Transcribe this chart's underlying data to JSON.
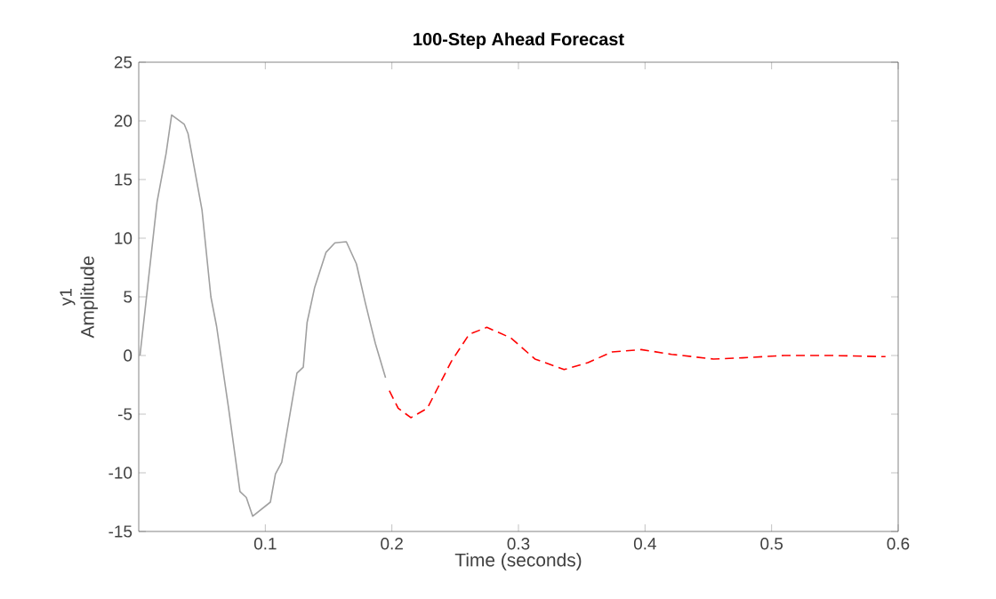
{
  "chart_data": {
    "type": "line",
    "title": "100-Step Ahead Forecast",
    "xlabel": "Time (seconds)",
    "ylabel": "Amplitude",
    "annotations": [
      "y1"
    ],
    "xlim": [
      0,
      0.6
    ],
    "xticks": [
      0.1,
      0.2,
      0.3,
      0.4,
      0.5,
      0.6
    ],
    "ylim": [
      -15,
      25
    ],
    "yticks": [
      -15,
      -10,
      -5,
      0,
      5,
      10,
      15,
      20,
      25
    ],
    "grid": false,
    "series": [
      {
        "color": "#a0a0a0",
        "line_style": "solid",
        "x": [
          0.001,
          0.0145,
          0.0216,
          0.026,
          0.036,
          0.039,
          0.05,
          0.057,
          0.0615,
          0.071,
          0.08,
          0.085,
          0.09,
          0.104,
          0.108,
          0.113,
          0.125,
          0.13,
          0.133,
          0.139,
          0.148,
          0.155,
          0.164,
          0.172,
          0.179,
          0.184,
          0.187,
          0.195
        ],
        "values": [
          0,
          13.1,
          17.2,
          20.5,
          19.7,
          18.9,
          12.4,
          5.0,
          2.5,
          -4.5,
          -11.6,
          -12.1,
          -13.7,
          -12.5,
          -10.1,
          -9.1,
          -1.5,
          -1.0,
          2.8,
          5.8,
          8.8,
          9.6,
          9.7,
          7.8,
          4.5,
          2.3,
          1.0,
          -1.9
        ]
      },
      {
        "color": "#ff0000",
        "line_style": "dashed",
        "x": [
          0.198,
          0.205,
          0.215,
          0.228,
          0.247,
          0.261,
          0.275,
          0.294,
          0.313,
          0.336,
          0.355,
          0.374,
          0.397,
          0.421,
          0.454,
          0.477,
          0.51,
          0.547,
          0.59
        ],
        "values": [
          -3.0,
          -4.5,
          -5.3,
          -4.5,
          -0.5,
          1.8,
          2.4,
          1.5,
          -0.3,
          -1.2,
          -0.6,
          0.3,
          0.5,
          0.1,
          -0.3,
          -0.2,
          0.0,
          0.0,
          -0.1
        ]
      }
    ]
  }
}
